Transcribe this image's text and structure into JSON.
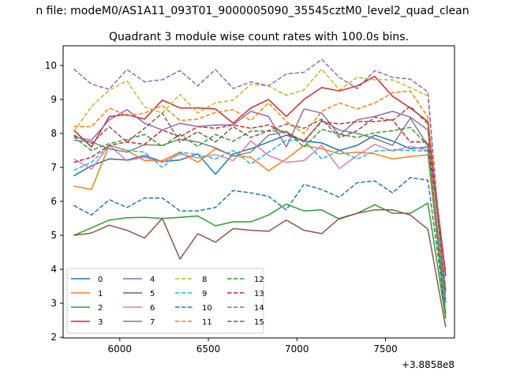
{
  "suptitle": "n file: modeM0/AS1A11_093T01_9000005090_35545cztM0_level2_quad_clean",
  "chart_data": {
    "type": "line",
    "title": "Quadrant 3 module wise count rates with 100.0s bins.",
    "xlabel": "",
    "ylabel": "",
    "x_offset_label": "+3.8858e8",
    "xlim": [
      5680,
      7890
    ],
    "ylim": [
      1.98,
      10.58
    ],
    "xticks": [
      6000,
      6500,
      7000,
      7500
    ],
    "yticks": [
      2,
      3,
      4,
      5,
      6,
      7,
      8,
      9,
      10
    ],
    "x": [
      5740,
      5840,
      5940,
      6040,
      6140,
      6240,
      6340,
      6440,
      6540,
      6640,
      6740,
      6840,
      6940,
      7040,
      7140,
      7240,
      7340,
      7440,
      7540,
      7640,
      7740,
      7840
    ],
    "legend": {
      "loc": "lower left",
      "ncol": 4
    },
    "series": [
      {
        "name": "0",
        "color": "#1f77b4",
        "dash": "solid",
        "values": [
          6.75,
          7.05,
          7.25,
          7.22,
          7.35,
          7.17,
          7.22,
          7.4,
          6.8,
          7.4,
          7.55,
          7.75,
          7.95,
          7.78,
          7.72,
          7.5,
          7.65,
          7.95,
          7.78,
          7.55,
          7.6,
          2.55
        ]
      },
      {
        "name": "1",
        "color": "#ff7f0e",
        "dash": "solid",
        "values": [
          6.45,
          6.35,
          7.65,
          7.5,
          7.2,
          7.2,
          7.45,
          7.15,
          7.55,
          7.35,
          7.3,
          6.9,
          7.25,
          7.65,
          7.55,
          7.4,
          7.45,
          7.4,
          7.25,
          7.32,
          7.37,
          2.6
        ]
      },
      {
        "name": "2",
        "color": "#2ca02c",
        "dash": "solid",
        "values": [
          5.0,
          5.22,
          5.45,
          5.52,
          5.53,
          5.5,
          5.53,
          5.57,
          5.28,
          5.4,
          5.4,
          5.6,
          5.92,
          5.72,
          5.75,
          5.48,
          5.65,
          5.9,
          5.65,
          5.65,
          5.95,
          2.55
        ]
      },
      {
        "name": "3",
        "color": "#d62728",
        "dash": "solid",
        "values": [
          8.1,
          7.6,
          8.5,
          8.55,
          8.42,
          8.98,
          8.75,
          8.75,
          8.72,
          8.3,
          8.75,
          9.0,
          8.5,
          9.0,
          9.35,
          9.25,
          9.4,
          9.68,
          9.1,
          8.75,
          8.35,
          3.8
        ]
      },
      {
        "name": "4",
        "color": "#9467bd",
        "dash": "solid",
        "values": [
          7.9,
          7.8,
          8.4,
          8.7,
          8.3,
          8.1,
          8.3,
          8.2,
          8.25,
          8.25,
          8.65,
          8.5,
          7.6,
          8.72,
          8.6,
          7.95,
          8.4,
          8.5,
          8.65,
          8.48,
          8.1,
          3.4
        ]
      },
      {
        "name": "5",
        "color": "#8c564b",
        "dash": "solid",
        "values": [
          5.0,
          5.07,
          5.3,
          5.15,
          4.92,
          5.5,
          4.3,
          5.05,
          4.8,
          5.2,
          5.15,
          5.12,
          5.45,
          5.15,
          5.05,
          5.5,
          5.65,
          5.75,
          5.75,
          5.6,
          5.18,
          2.3
        ]
      },
      {
        "name": "6",
        "color": "#e377c2",
        "dash": "solid",
        "values": [
          7.25,
          6.95,
          7.65,
          7.2,
          7.3,
          7.15,
          7.4,
          7.28,
          7.38,
          7.2,
          7.78,
          7.35,
          7.15,
          7.2,
          7.65,
          6.97,
          7.35,
          7.68,
          7.48,
          7.62,
          7.5,
          3.1
        ]
      },
      {
        "name": "7",
        "color": "#7f7f7f",
        "dash": "solid",
        "values": [
          7.8,
          7.75,
          7.55,
          7.45,
          7.67,
          7.65,
          7.83,
          7.75,
          7.58,
          7.33,
          7.45,
          7.95,
          8.05,
          7.75,
          8.38,
          8.1,
          8.0,
          7.85,
          7.65,
          8.45,
          7.65,
          3.0
        ]
      },
      {
        "name": "8",
        "color": "#bcbd22",
        "dash": "dashed",
        "values": [
          8.05,
          8.8,
          9.27,
          9.55,
          8.78,
          8.6,
          9.15,
          8.6,
          8.9,
          8.98,
          9.45,
          9.4,
          9.12,
          9.28,
          9.9,
          9.28,
          9.65,
          9.58,
          9.58,
          9.35,
          9.1,
          3.15
        ]
      },
      {
        "name": "9",
        "color": "#17becf",
        "dash": "dashed",
        "values": [
          6.92,
          7.15,
          7.65,
          7.5,
          7.45,
          7.0,
          7.45,
          7.38,
          7.25,
          7.5,
          7.1,
          7.45,
          7.8,
          7.8,
          7.25,
          7.5,
          7.25,
          7.48,
          7.52,
          7.5,
          7.48,
          3.0
        ]
      },
      {
        "name": "10",
        "color": "#1f77b4",
        "dash": "dashed",
        "values": [
          5.88,
          5.6,
          6.05,
          5.82,
          6.1,
          6.1,
          5.72,
          5.72,
          5.82,
          6.32,
          6.25,
          6.15,
          5.75,
          6.5,
          6.35,
          6.12,
          6.55,
          6.6,
          6.25,
          6.7,
          6.62,
          2.7
        ]
      },
      {
        "name": "11",
        "color": "#ff7f0e",
        "dash": "dashed",
        "values": [
          8.2,
          8.2,
          8.75,
          8.52,
          8.6,
          8.82,
          8.38,
          8.42,
          8.62,
          8.7,
          8.38,
          8.9,
          8.35,
          8.0,
          8.65,
          8.9,
          8.72,
          8.9,
          9.2,
          9.25,
          8.48,
          3.3
        ]
      },
      {
        "name": "12",
        "color": "#2ca02c",
        "dash": "dashed",
        "values": [
          7.9,
          7.5,
          7.7,
          7.82,
          7.97,
          7.62,
          7.97,
          7.62,
          7.97,
          7.77,
          8.07,
          8.07,
          8.07,
          7.6,
          8.12,
          7.98,
          7.88,
          8.02,
          8.08,
          8.18,
          7.65,
          2.7
        ]
      },
      {
        "name": "13",
        "color": "#d62728",
        "dash": "dashed",
        "values": [
          7.15,
          7.3,
          7.65,
          7.75,
          7.68,
          8.1,
          7.9,
          8.2,
          8.15,
          8.25,
          8.15,
          8.25,
          8.0,
          7.78,
          8.35,
          8.28,
          8.35,
          8.35,
          8.4,
          7.75,
          7.75,
          3.9
        ]
      },
      {
        "name": "14",
        "color": "#9467bd",
        "dash": "dashed",
        "values": [
          9.9,
          9.45,
          9.3,
          9.88,
          9.52,
          9.58,
          9.85,
          9.4,
          9.88,
          9.32,
          9.52,
          9.4,
          9.75,
          9.8,
          10.18,
          9.65,
          9.32,
          9.85,
          9.65,
          9.6,
          9.22,
          3.0
        ]
      },
      {
        "name": "15",
        "color": "#8c564b",
        "dash": "dashed",
        "values": [
          7.95,
          7.7,
          8.2,
          7.75,
          8.15,
          8.6,
          7.75,
          8.05,
          7.75,
          8.2,
          7.88,
          8.08,
          8.28,
          8.15,
          8.42,
          7.88,
          8.08,
          8.48,
          8.38,
          8.8,
          8.28,
          3.3
        ]
      }
    ]
  }
}
